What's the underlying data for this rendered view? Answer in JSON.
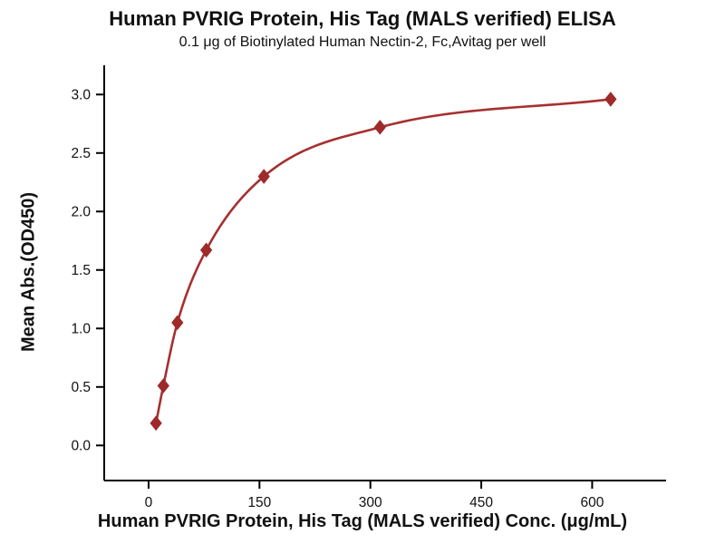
{
  "chart_data": {
    "type": "scatter",
    "title": "Human PVRIG Protein, His Tag (MALS verified) ELISA",
    "subtitle": "0.1 μg of Biotinylated Human Nectin-2, Fc,Avitag per well",
    "xlabel": "Human PVRIG Protein, His Tag (MALS verified) Conc. (μg/mL)",
    "ylabel": "Mean Abs.(OD450)",
    "x": [
      10,
      20,
      39,
      78,
      156,
      313,
      625
    ],
    "y": [
      0.19,
      0.51,
      1.05,
      1.67,
      2.3,
      2.72,
      2.96
    ],
    "x_ticks": [
      "0",
      "150",
      "300",
      "450",
      "600"
    ],
    "x_tick_values": [
      0,
      150,
      300,
      450,
      600
    ],
    "y_ticks": [
      "0.0",
      "0.5",
      "1.0",
      "1.5",
      "2.0",
      "2.5",
      "3.0"
    ],
    "y_tick_values": [
      0.0,
      0.5,
      1.0,
      1.5,
      2.0,
      2.5,
      3.0
    ],
    "xlim": [
      -60,
      700
    ],
    "ylim": [
      -0.3,
      3.25
    ],
    "marker": "diamond",
    "line_color": "#a63030",
    "marker_color": "#9e2a2a",
    "axis_color": "#000000",
    "background": "#ffffff",
    "grid": false,
    "legend": null
  }
}
